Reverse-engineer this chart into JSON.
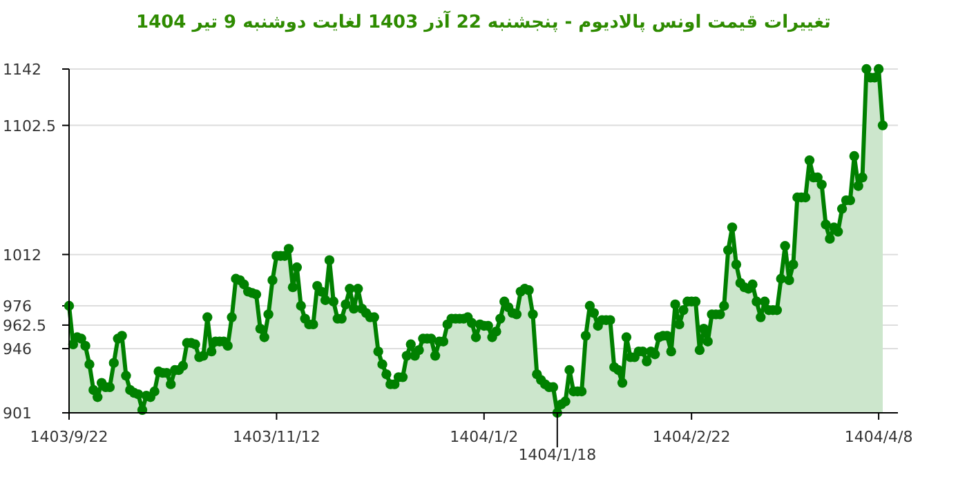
{
  "chart_data": {
    "type": "area",
    "title": "تغییرات قیمت اونس پالادیوم - پنجشنبه  22 آذر 1403 لغایت  دوشنبه  9 تیر 1404",
    "categories": [
      "1403/9/22",
      null,
      null,
      null,
      null,
      null,
      null,
      null,
      null,
      null,
      null,
      null,
      null,
      null,
      null,
      null,
      null,
      null,
      null,
      null,
      null,
      null,
      null,
      null,
      null,
      null,
      null,
      null,
      null,
      null,
      null,
      null,
      null,
      null,
      null,
      null,
      null,
      null,
      null,
      null,
      null,
      null,
      null,
      null,
      null,
      null,
      null,
      null,
      null,
      null,
      null,
      "1403/11/12",
      null,
      null,
      null,
      null,
      null,
      null,
      null,
      null,
      null,
      null,
      null,
      null,
      null,
      null,
      null,
      null,
      null,
      null,
      null,
      null,
      null,
      null,
      null,
      null,
      null,
      null,
      null,
      null,
      null,
      null,
      null,
      null,
      null,
      null,
      null,
      null,
      null,
      null,
      null,
      null,
      null,
      null,
      null,
      null,
      null,
      null,
      null,
      null,
      null,
      null,
      "1404/1/2",
      null,
      null,
      null,
      null,
      null,
      null,
      null,
      null,
      null,
      null,
      null,
      null,
      null,
      null,
      null,
      null,
      null,
      "1404/1/18",
      null,
      null,
      null,
      null,
      null,
      null,
      null,
      null,
      null,
      null,
      null,
      null,
      null,
      null,
      null,
      null,
      null,
      null,
      null,
      null,
      null,
      null,
      null,
      null,
      null,
      null,
      null,
      null,
      null,
      null,
      null,
      null,
      "1404/2/22",
      null,
      null,
      null,
      null,
      null,
      null,
      null,
      null,
      null,
      null,
      null,
      null,
      null,
      null,
      null,
      null,
      null,
      null,
      null,
      null,
      null,
      null,
      null,
      null,
      null,
      null,
      null,
      null,
      null,
      null,
      null,
      null,
      null,
      null,
      null,
      null,
      null,
      null,
      null,
      null,
      null,
      null,
      null,
      null,
      null,
      "1404/4/8",
      null
    ],
    "series": [
      {
        "color": "#008000",
        "values": [
          976,
          949,
          954,
          953,
          948,
          935,
          917,
          912,
          922,
          919,
          919,
          936,
          953,
          955,
          927,
          917,
          915,
          914,
          903,
          913,
          912,
          916,
          930,
          929,
          929,
          921,
          931,
          931,
          934,
          950,
          950,
          949,
          940,
          941,
          968,
          944,
          951,
          951,
          951,
          948,
          968,
          995,
          994,
          991,
          986,
          985,
          984,
          960,
          954,
          970,
          994,
          1011,
          1011,
          1011,
          1016,
          989,
          1003,
          976,
          967,
          963,
          963,
          990,
          986,
          980,
          1008,
          979,
          967,
          967,
          977,
          988,
          974,
          988,
          974,
          971,
          968,
          968,
          944,
          935,
          928,
          921,
          921,
          926,
          926,
          941,
          949,
          941,
          945,
          953,
          953,
          953,
          941,
          951,
          951,
          963,
          967,
          967,
          967,
          967,
          968,
          964,
          954,
          963,
          962,
          962,
          954,
          958,
          967,
          979,
          975,
          971,
          970,
          986,
          988,
          987,
          970,
          928,
          924,
          921,
          919,
          919,
          901,
          907,
          909,
          931,
          916,
          916,
          916,
          955,
          976,
          971,
          962,
          966,
          966,
          966,
          933,
          931,
          922,
          954,
          940,
          940,
          944,
          944,
          937,
          944,
          942,
          954,
          955,
          955,
          944,
          977,
          963,
          973,
          979,
          979,
          979,
          945,
          960,
          951,
          970,
          970,
          970,
          976,
          1015,
          1031,
          1005,
          992,
          989,
          988,
          991,
          979,
          968,
          979,
          973,
          973,
          973,
          995,
          1018,
          994,
          1005,
          1052,
          1052,
          1052,
          1078,
          1066,
          1066,
          1061,
          1033,
          1023,
          1031,
          1028,
          1044,
          1050,
          1050,
          1081,
          1060,
          1066,
          1142,
          1136,
          1136,
          1142,
          1102.5
        ]
      }
    ],
    "ylim": [
      901,
      1142
    ],
    "yticks": [
      901,
      946,
      962.5,
      976,
      1012,
      1102.5,
      1142
    ],
    "grid": "y",
    "marker": "circle"
  }
}
